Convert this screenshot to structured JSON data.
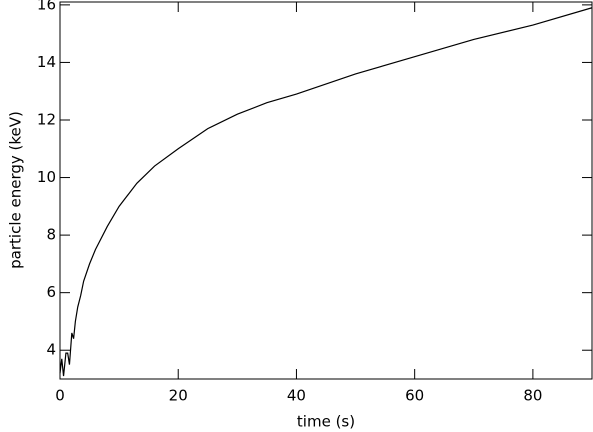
{
  "chart_data": {
    "type": "line",
    "x_label": "time (s)",
    "y_label": "particle energy (keV)",
    "x": [
      0,
      0.3,
      0.6,
      1,
      1.3,
      1.6,
      2,
      2.3,
      2.6,
      3,
      3.5,
      4,
      5,
      6,
      8,
      10,
      13,
      16,
      20,
      25,
      30,
      35,
      40,
      50,
      60,
      70,
      80,
      90
    ],
    "series": [
      {
        "color": "#000000",
        "values": [
          3.2,
          3.7,
          3.1,
          3.9,
          3.9,
          3.5,
          4.6,
          4.4,
          5.0,
          5.5,
          5.9,
          6.4,
          7.0,
          7.5,
          8.3,
          9.0,
          9.8,
          10.4,
          11.0,
          11.7,
          12.2,
          12.6,
          12.9,
          13.6,
          14.2,
          14.8,
          15.3,
          15.9
        ]
      }
    ],
    "xlim": [
      0,
      90
    ],
    "ylim": [
      3,
      16.1
    ],
    "xticks": [
      0,
      20,
      40,
      60,
      80
    ],
    "yticks": [
      4,
      6,
      8,
      10,
      12,
      14,
      16
    ]
  }
}
